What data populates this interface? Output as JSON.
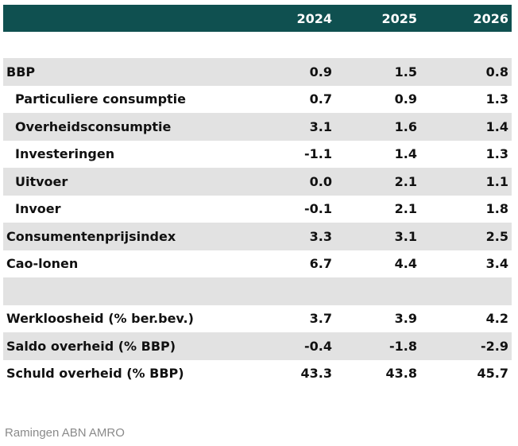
{
  "chart_data": {
    "type": "table",
    "columns": [
      "2024",
      "2025",
      "2026"
    ],
    "rows": [
      {
        "label": "BBP",
        "values": [
          "0.9",
          "1.5",
          "0.8"
        ],
        "indent": false
      },
      {
        "label": "Particuliere consumptie",
        "values": [
          "0.7",
          "0.9",
          "1.3"
        ],
        "indent": true
      },
      {
        "label": "Overheidsconsumptie",
        "values": [
          "3.1",
          "1.6",
          "1.4"
        ],
        "indent": true
      },
      {
        "label": "Investeringen",
        "values": [
          "-1.1",
          "1.4",
          "1.3"
        ],
        "indent": true
      },
      {
        "label": "Uitvoer",
        "values": [
          "0.0",
          "2.1",
          "1.1"
        ],
        "indent": true
      },
      {
        "label": "Invoer",
        "values": [
          "-0.1",
          "2.1",
          "1.8"
        ],
        "indent": true
      },
      {
        "label": "Consumentenprijsindex",
        "values": [
          "3.3",
          "3.1",
          "2.5"
        ],
        "indent": false
      },
      {
        "label": "Cao-lonen",
        "values": [
          "6.7",
          "4.4",
          "3.4"
        ],
        "indent": false
      },
      {
        "label": "",
        "values": [
          "",
          "",
          ""
        ],
        "indent": false
      },
      {
        "label": "Werkloosheid (% ber.bev.)",
        "values": [
          "3.7",
          "3.9",
          "4.2"
        ],
        "indent": false
      },
      {
        "label": "Saldo overheid (% BBP)",
        "values": [
          "-0.4",
          "-1.8",
          "-2.9"
        ],
        "indent": false
      },
      {
        "label": "Schuld overheid (% BBP)",
        "values": [
          "43.3",
          "43.8",
          "45.7"
        ],
        "indent": false
      }
    ],
    "source": "Ramingen ABN AMRO"
  },
  "colors": {
    "header_bg": "#0f5050",
    "header_text": "#ffffff",
    "stripe": "#e2e2e2",
    "footer_text": "#8a8a8a"
  }
}
